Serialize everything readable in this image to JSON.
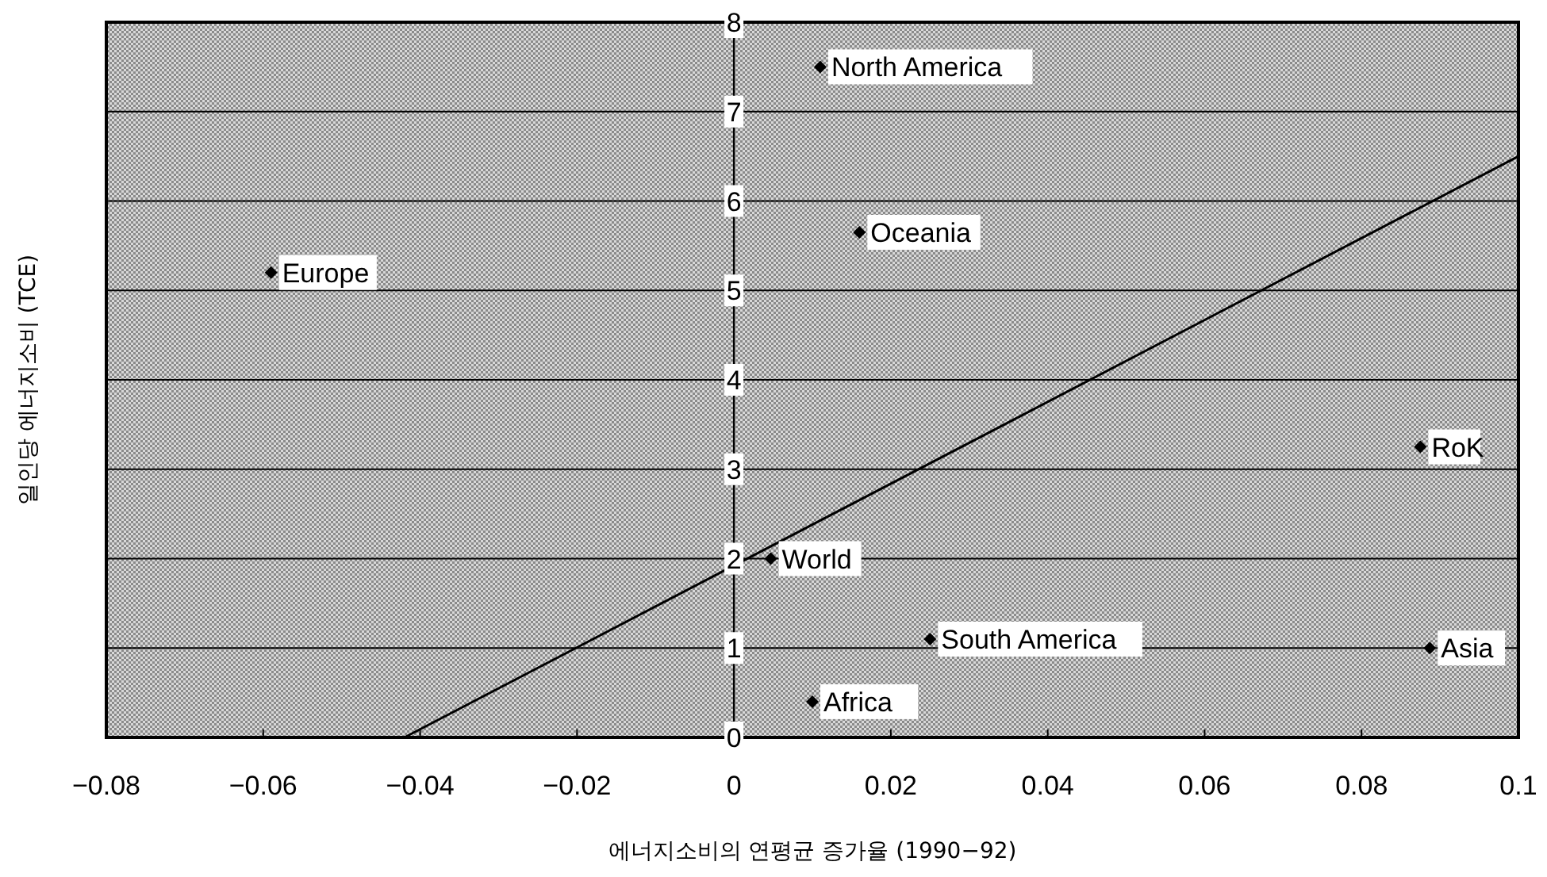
{
  "chart_data": {
    "type": "scatter",
    "xlabel": "에너지소비의 연평균 증가율 (1990−92)",
    "ylabel": "일인당 에너지소비 (TCE)",
    "xlim": [
      -0.08,
      0.1
    ],
    "ylim": [
      0,
      8
    ],
    "xticks": [
      {
        "value": -0.08,
        "label": "−0.08"
      },
      {
        "value": -0.06,
        "label": "−0.06"
      },
      {
        "value": -0.04,
        "label": "−0.04"
      },
      {
        "value": -0.02,
        "label": "−0.02"
      },
      0,
      0.02,
      0.04,
      0.06,
      0.08,
      0.1
    ],
    "yticks": [
      0,
      1,
      2,
      3,
      4,
      5,
      6,
      7,
      8
    ],
    "grid": "y",
    "series": [
      {
        "color": "#000000",
        "marker": "diamond",
        "x": [
          0.011,
          0.016,
          -0.059,
          0.0875,
          0.0047,
          0.025,
          0.0887,
          0.01
        ],
        "values": [
          7.5,
          5.65,
          5.2,
          3.25,
          2.0,
          1.1,
          1.0,
          0.4
        ],
        "value_labels": [
          "North America",
          "Oceania",
          "Europe",
          "RoK",
          "World",
          "South America",
          "Asia",
          "Africa"
        ]
      },
      {
        "type": "line",
        "color": "#000000",
        "marker": "none",
        "x": [
          -0.042,
          0.1
        ],
        "values": [
          0,
          6.5
        ]
      }
    ]
  }
}
